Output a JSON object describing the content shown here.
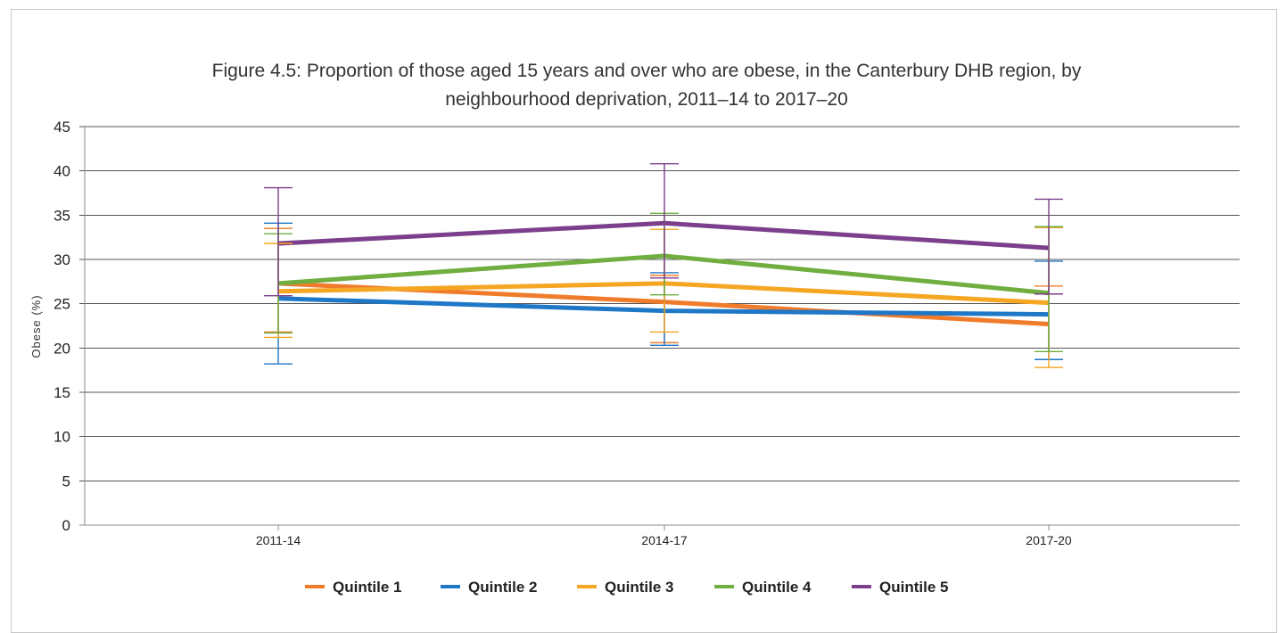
{
  "chart_data": {
    "type": "line",
    "title_lines": [
      "Figure 4.5: Proportion of those aged 15 years and over who are obese, in the Canterbury DHB region, by",
      "neighbourhood deprivation, 2011–14 to 2017–20"
    ],
    "ylabel": "Obese (%)",
    "xlabel": "",
    "categories": [
      "2011-14",
      "2014-17",
      "2017-20"
    ],
    "ylim": [
      0,
      45
    ],
    "yticks": [
      "0",
      "5",
      "10",
      "15",
      "20",
      "25",
      "30",
      "35",
      "40",
      "45"
    ],
    "grid": true,
    "legend_position": "bottom",
    "error_bars": true,
    "series": [
      {
        "name": "Quintile 1",
        "color": "#f07b2b",
        "values": [
          27.3,
          25.2,
          22.7
        ],
        "lower": [
          21.8,
          20.6,
          18.7
        ],
        "upper": [
          33.5,
          28.2,
          27.0
        ]
      },
      {
        "name": "Quintile 2",
        "color": "#1f77c8",
        "values": [
          25.6,
          24.2,
          23.8
        ],
        "lower": [
          18.2,
          20.3,
          18.7
        ],
        "upper": [
          34.1,
          28.5,
          29.8
        ]
      },
      {
        "name": "Quintile 3",
        "color": "#f5a623",
        "values": [
          26.4,
          27.3,
          25.1
        ],
        "lower": [
          21.2,
          21.8,
          17.8
        ],
        "upper": [
          31.8,
          33.4,
          33.6
        ]
      },
      {
        "name": "Quintile 4",
        "color": "#6fae3f",
        "values": [
          27.3,
          30.4,
          26.2
        ],
        "lower": [
          21.7,
          26.0,
          19.6
        ],
        "upper": [
          32.9,
          35.2,
          33.7
        ]
      },
      {
        "name": "Quintile 5",
        "color": "#7b3f8c",
        "values": [
          31.8,
          34.1,
          31.3
        ],
        "lower": [
          25.9,
          27.9,
          26.1
        ],
        "upper": [
          38.1,
          40.8,
          36.8
        ]
      }
    ]
  }
}
